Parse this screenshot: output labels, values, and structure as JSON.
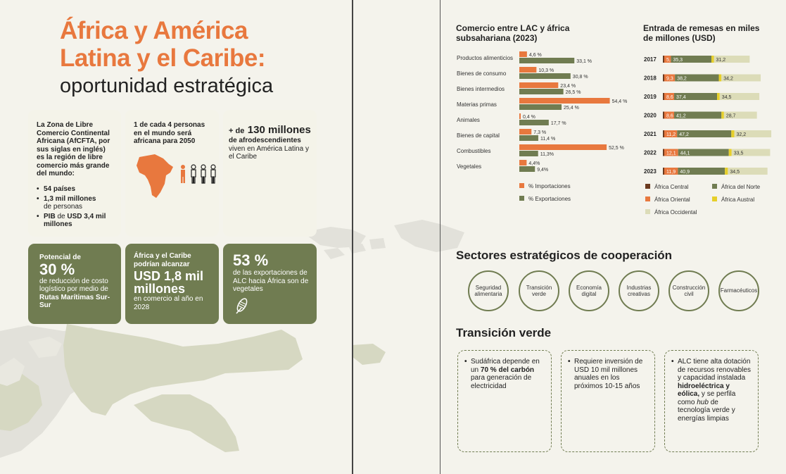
{
  "title": {
    "line1": "África y América",
    "line2": "Latina y el Caribe:",
    "line3": "oportunidad estratégica"
  },
  "afcfta": {
    "text": "La Zona de Libre Comercio Continental Africana (AfCFTA, por sus siglas en inglés) es la región de libre comercio más grande del mundo:",
    "items": [
      {
        "bold": "54 países",
        "rest": ""
      },
      {
        "bold": "1,3 mil millones",
        "rest": "de personas"
      },
      {
        "bold": "PIB",
        "rest": "de",
        "bold2": "USD 3,4 mil millones"
      }
    ]
  },
  "population": {
    "text": "1 de cada 4 personas en el mundo será africana para 2050"
  },
  "afro": {
    "prefix": "+ de",
    "number": "130 millones",
    "bold": "de afrodescendientes",
    "rest": "viven en América Latina y el Caribe"
  },
  "logistic": {
    "head": "Potencial de",
    "number": "30 %",
    "rest1": "de reducción de costo logístico por medio de",
    "bold": "Rutas Marítimas Sur-Sur"
  },
  "exports_usd": {
    "head": "África y el Caribe podrían alcanzar",
    "number": "USD 1,8 mil millones",
    "rest": "en comercio al año en 2028"
  },
  "veg": {
    "number": "53 %",
    "rest": "de las exportaciones de ALC hacia África son de vegetales"
  },
  "chart_data": [
    {
      "type": "bar",
      "title": "Comercio entre LAC y áfrica subsahariana (2023)",
      "categories": [
        "Productos alimenticios",
        "Bienes de consumo",
        "Bienes intermedios",
        "Materias primas",
        "Animales",
        "Bienes de capital",
        "Combustibles",
        "Vegetales"
      ],
      "series": [
        {
          "name": "% Importaciones",
          "color": "#e8783e",
          "values": [
            4.6,
            10.3,
            23.4,
            54.4,
            0.4,
            7.3,
            52.5,
            4.4
          ],
          "labels": [
            "4,6 %",
            "10,3 %",
            "23,4 %",
            "54,4 %",
            "0,4 %",
            "7,3 %",
            "52,5 %",
            "4,4%"
          ]
        },
        {
          "name": "% Exportaciones",
          "color": "#707c51",
          "values": [
            33.1,
            30.8,
            26.5,
            25.4,
            17.7,
            11.4,
            11.3,
            9.4
          ],
          "labels": [
            "33,1 %",
            "30,8 %",
            "26,5 %",
            "25,4 %",
            "17,7 %",
            "11,4 %",
            "11,3%",
            "9,4%"
          ]
        }
      ]
    },
    {
      "type": "bar",
      "title": "Entrada de remesas en miles de millones (USD)",
      "categories": [
        "2017",
        "2018",
        "2019",
        "2020",
        "2021",
        "2022",
        "2023"
      ],
      "stacked": true,
      "series": [
        {
          "name": "África Central",
          "color": "#6b3a1f",
          "values": [
            0.1,
            0.1,
            0.1,
            0.1,
            0.1,
            0.1,
            0.1
          ],
          "labels": [
            "",
            "",
            "",
            "",
            "",
            "",
            ""
          ]
        },
        {
          "name": "África Oriental",
          "color": "#e8783e",
          "values": [
            5.8,
            9.3,
            8.6,
            8.6,
            11.2,
            12.1,
            11.9
          ],
          "labels": [
            "5,8",
            "9,3",
            "8,6",
            "8,6",
            "11,2",
            "12,1",
            "11,9"
          ]
        },
        {
          "name": "África del Norte",
          "color": "#707c51",
          "values": [
            35.3,
            38.2,
            37.4,
            41.2,
            47.2,
            44.1,
            40.9
          ],
          "labels": [
            "35,3",
            "38,2",
            "37,4",
            "41,2",
            "47,2",
            "44,1",
            "40,9"
          ]
        },
        {
          "name": "África Austral",
          "color": "#e6cf2a",
          "values": [
            2.1,
            2.3,
            2.3,
            2.2,
            2.6,
            2.5,
            2.6
          ],
          "labels": [
            "2,1",
            "2,3",
            "2,3",
            "2,2",
            "2,6",
            "2,5",
            "2,6"
          ]
        },
        {
          "name": "África Occidental",
          "color": "#dcdcb8",
          "values": [
            31.2,
            34.2,
            34.5,
            28.7,
            32.2,
            33.5,
            34.5
          ],
          "labels": [
            "31,2",
            "34,2",
            "34,5",
            "28,7",
            "32,2",
            "33,5",
            "34,5"
          ]
        }
      ]
    }
  ],
  "sectors": {
    "title": "Sectores estratégicos de cooperación",
    "items": [
      "Seguridad alimentaria",
      "Transición verde",
      "Economía digital",
      "Industrias creativas",
      "Construcción civil",
      "Farmacéuticos"
    ]
  },
  "green": {
    "title": "Transición verde",
    "box1": {
      "a": "Sudáfrica depende en un",
      "b": "70 % del carbón",
      "c": "para generación de electricidad"
    },
    "box2": {
      "a": "Requiere inversión de USD 10 mil millones anuales en los próximos 10-15 años"
    },
    "box3": {
      "a": "ALC tiene alta dotación de recursos renovables y capacidad instalada",
      "b": "hidroeléctrica y eólica,",
      "c": "y se perfila como",
      "d": "hub",
      "e": "de tecnología verde y energías limpias"
    }
  }
}
